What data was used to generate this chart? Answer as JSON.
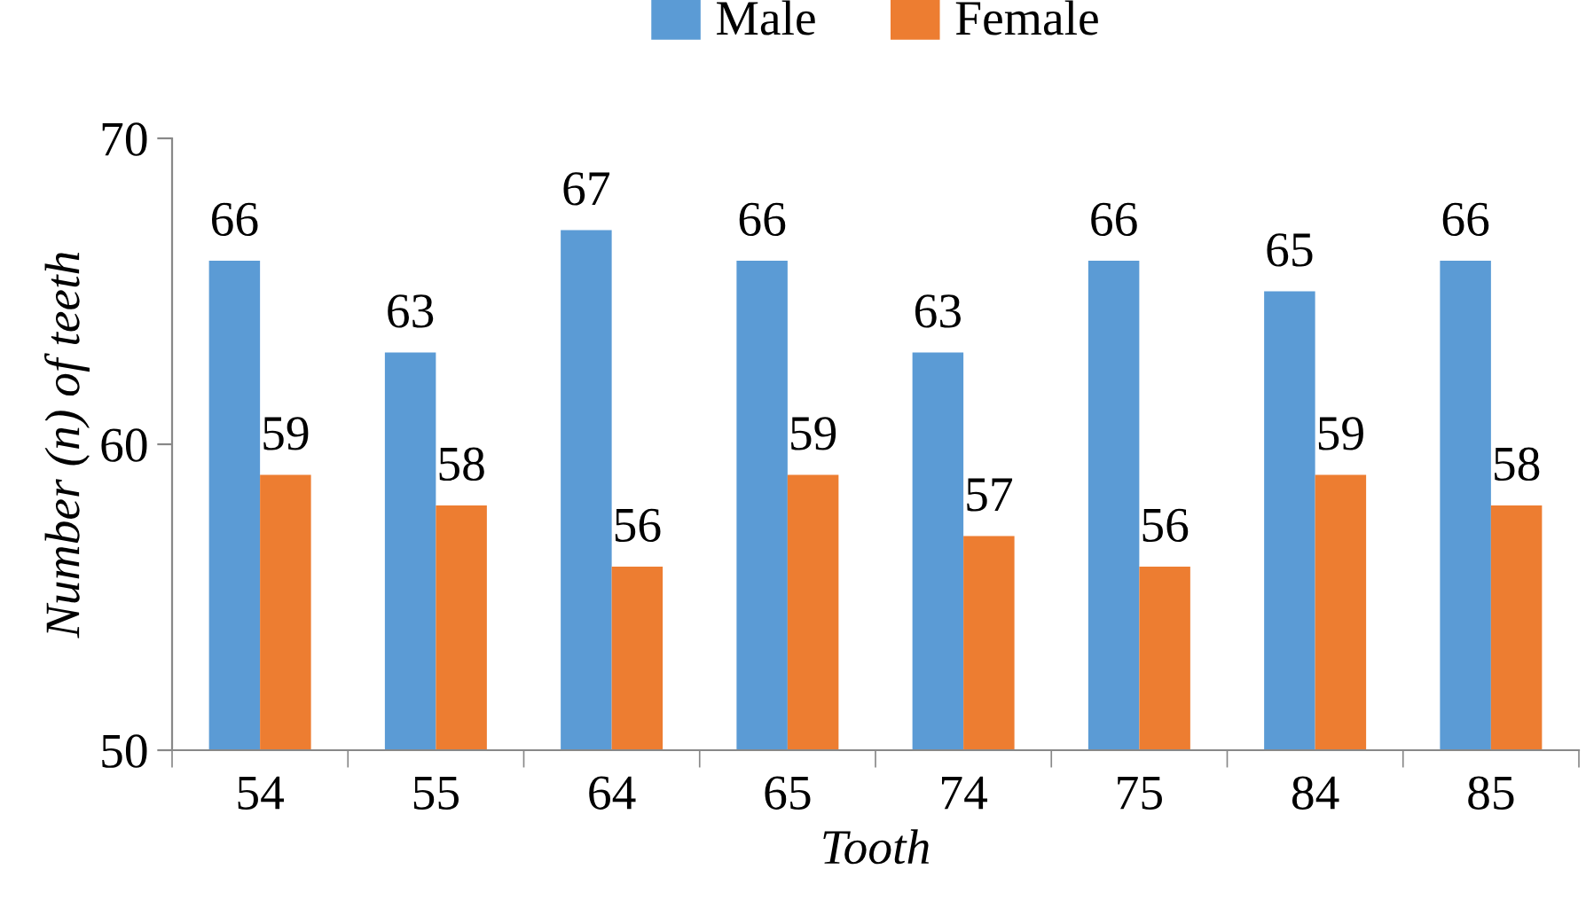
{
  "chart_data": {
    "type": "bar",
    "xlabel": "Tooth",
    "ylabel": "Number (n) of teeth",
    "categories": [
      "54",
      "55",
      "64",
      "65",
      "74",
      "75",
      "84",
      "85"
    ],
    "series": [
      {
        "name": "Male",
        "color": "#5b9bd5",
        "values": [
          66,
          63,
          67,
          66,
          63,
          66,
          65,
          66
        ]
      },
      {
        "name": "Female",
        "color": "#ed7d31",
        "values": [
          59,
          58,
          56,
          59,
          57,
          56,
          59,
          58
        ]
      }
    ],
    "ylim": [
      50,
      70
    ],
    "yticks": [
      50,
      60,
      70
    ],
    "grid": false,
    "legend": "top",
    "data_labels": true
  }
}
